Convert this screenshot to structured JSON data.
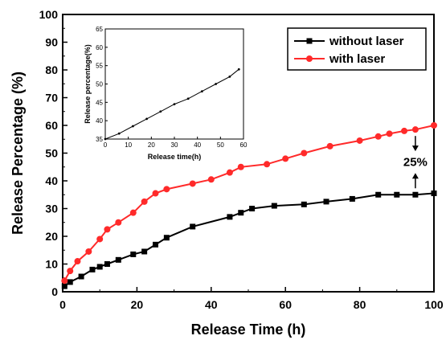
{
  "chart_data": [
    {
      "type": "line",
      "title": "",
      "xlabel": "Release Time (h)",
      "ylabel": "Release Percentage (%)",
      "xlim": [
        0,
        100
      ],
      "ylim": [
        0,
        100
      ],
      "xticks": [
        0,
        20,
        40,
        60,
        80,
        100
      ],
      "yticks": [
        0,
        10,
        20,
        30,
        40,
        50,
        60,
        70,
        80,
        90,
        100
      ],
      "grid": false,
      "legend_position": "top-right",
      "series": [
        {
          "name": "without laser",
          "color": "#000000",
          "marker": "square",
          "x": [
            0.5,
            2,
            5,
            8,
            10,
            12,
            15,
            19,
            22,
            25,
            28,
            35,
            45,
            48,
            51,
            57,
            65,
            71,
            78,
            85,
            90,
            95,
            100
          ],
          "y": [
            2,
            3.5,
            5.5,
            8,
            9,
            10,
            11.5,
            13.5,
            14.5,
            17,
            19.5,
            23.5,
            27,
            28.5,
            30,
            31,
            31.5,
            32.5,
            33.5,
            35,
            35,
            35,
            35.5
          ]
        },
        {
          "name": "with laser",
          "color": "#ff2a2a",
          "marker": "circle",
          "x": [
            0.5,
            2,
            4,
            7,
            10,
            12,
            15,
            19,
            22,
            25,
            28,
            35,
            40,
            45,
            48,
            55,
            60,
            65,
            72,
            80,
            85,
            88,
            92,
            95,
            100
          ],
          "y": [
            4,
            7.5,
            11,
            14.5,
            19,
            22.5,
            25,
            28.5,
            32.5,
            35.5,
            37,
            39,
            40.5,
            43,
            45,
            46,
            48,
            50,
            52.5,
            54.5,
            56,
            57,
            58,
            58.5,
            60
          ]
        }
      ],
      "annotations": [
        {
          "text": "25%",
          "x": 95,
          "y_from": 35,
          "y_to": 58.5
        }
      ]
    },
    {
      "type": "line",
      "title": "",
      "xlabel": "Release time(h)",
      "ylabel": "Release percentage(%)",
      "xlim": [
        0,
        60
      ],
      "ylim": [
        35,
        65
      ],
      "xticks": [
        0,
        10,
        20,
        30,
        40,
        50,
        60
      ],
      "yticks": [
        35,
        40,
        45,
        50,
        55,
        60,
        65
      ],
      "grid": false,
      "series": [
        {
          "color": "#000000",
          "marker": "dot",
          "x": [
            0,
            6,
            12,
            18,
            24,
            30,
            36,
            42,
            48,
            54,
            58
          ],
          "y": [
            35,
            36.5,
            38.5,
            40.5,
            42.5,
            44.5,
            46,
            48,
            50,
            52,
            54
          ]
        }
      ]
    }
  ]
}
